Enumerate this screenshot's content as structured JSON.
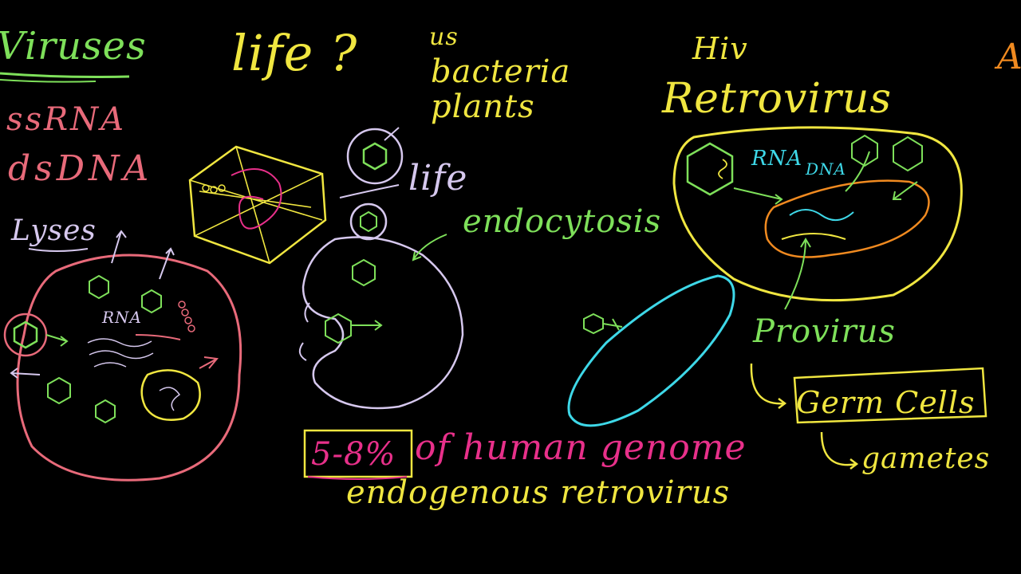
{
  "board": {
    "left_column": {
      "title": "Viruses",
      "genome_types": [
        "ssRNA",
        "dsDNA"
      ],
      "process": "Lyses",
      "inner_label": "RNA"
    },
    "question": {
      "word": "life",
      "mark": "?"
    },
    "life_examples": [
      "us",
      "bacteria",
      "plants"
    ],
    "center": {
      "life_label": "life",
      "process": "endocytosis"
    },
    "retrovirus": {
      "virus": "Hiv",
      "type": "Retrovirus",
      "rna_label": "RNA",
      "dna_label": "DNA",
      "provirus": "Provirus",
      "germ_cells": "Germ Cells",
      "gametes": "gametes"
    },
    "genome_fact": {
      "percent": "5-8%",
      "text": "of human genome",
      "term": "endogenous retrovirus"
    },
    "edge_letter": "A"
  },
  "colors": {
    "background": "#000000",
    "green": "#7ee05a",
    "yellow": "#f0e640",
    "pink": "#e86a7a",
    "magenta": "#e8308a",
    "lavender": "#d6c8ee",
    "cyan": "#3ed8e8",
    "orange": "#f08a20"
  }
}
